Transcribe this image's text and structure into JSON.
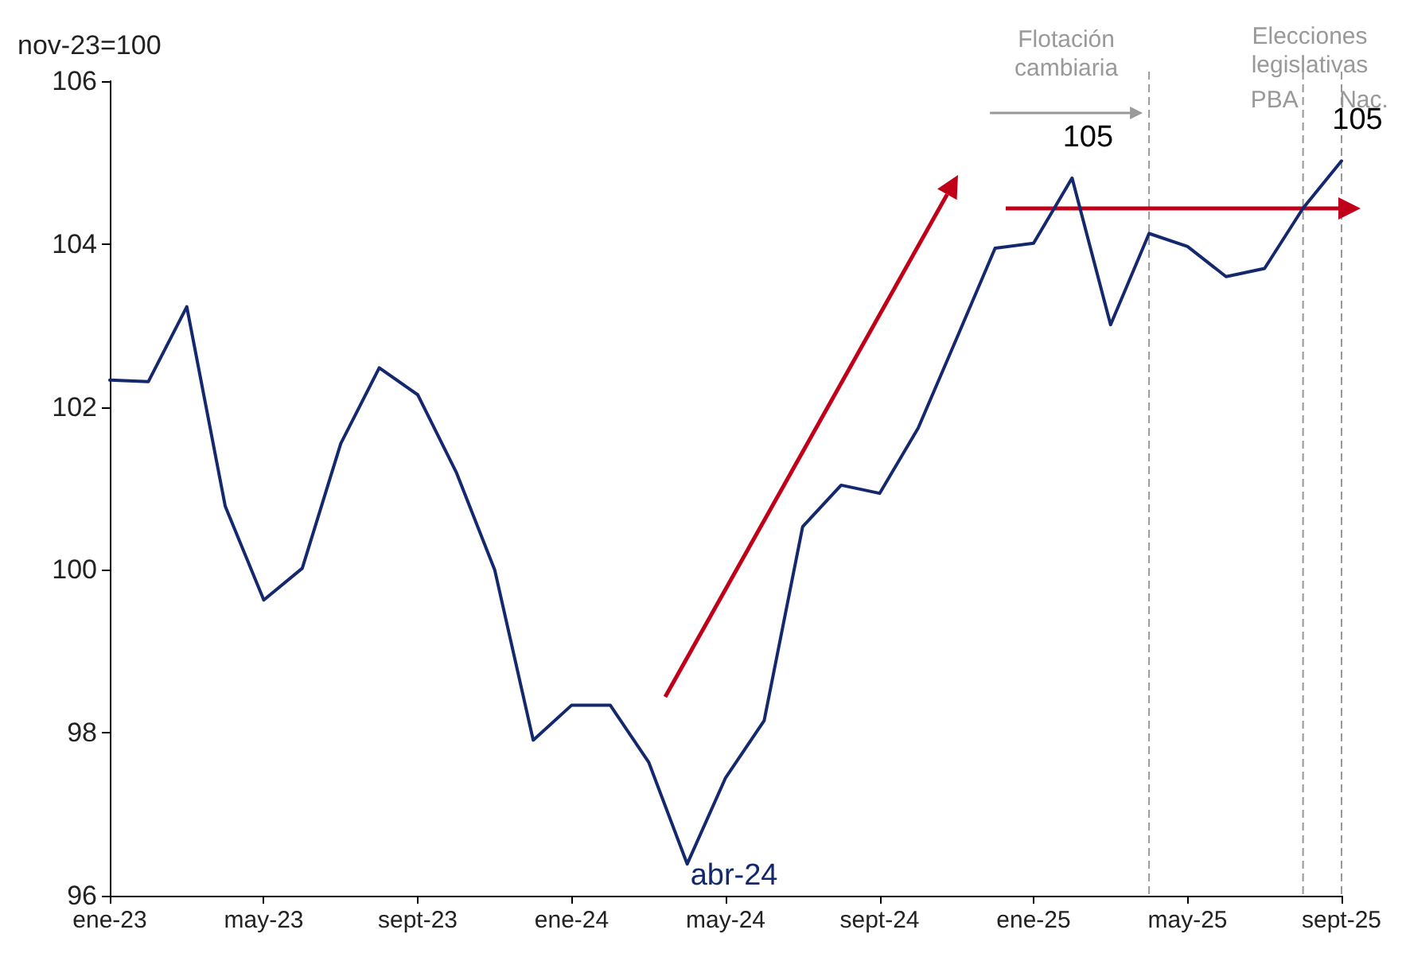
{
  "chart_data": {
    "type": "line",
    "ylabel": "nov-23=100",
    "x": [
      "2023-01",
      "2023-02",
      "2023-03",
      "2023-04",
      "2023-05",
      "2023-06",
      "2023-07",
      "2023-08",
      "2023-09",
      "2023-10",
      "2023-11",
      "2023-12",
      "2024-01",
      "2024-02",
      "2024-03",
      "2024-04",
      "2024-05",
      "2024-06",
      "2024-07",
      "2024-08",
      "2024-09",
      "2024-10",
      "2024-11",
      "2024-12",
      "2025-01",
      "2025-02",
      "2025-03",
      "2025-04",
      "2025-05",
      "2025-06",
      "2025-07",
      "2025-08",
      "2025-09"
    ],
    "series": [
      {
        "color": "#14286e",
        "values": [
          102.33,
          102.31,
          103.23,
          100.78,
          99.63,
          100.02,
          101.55,
          102.48,
          102.15,
          101.2,
          100,
          97.91,
          98.34,
          98.34,
          97.64,
          96.39,
          97.45,
          98.15,
          100.53,
          101.04,
          100.94,
          101.74,
          102.84,
          103.95,
          104.01,
          104.81,
          103.01,
          104.13,
          103.97,
          103.6,
          103.7,
          104.44,
          105.02
        ]
      }
    ],
    "xlim": [
      "2023-01",
      "2025-09"
    ],
    "xticks": [
      {
        "value": "2023-01",
        "label": "ene-23"
      },
      {
        "value": "2023-05",
        "label": "may-23"
      },
      {
        "value": "2023-09",
        "label": "sept-23"
      },
      {
        "value": "2024-01",
        "label": "ene-24"
      },
      {
        "value": "2024-05",
        "label": "may-24"
      },
      {
        "value": "2024-09",
        "label": "sept-24"
      },
      {
        "value": "2025-01",
        "label": "ene-25"
      },
      {
        "value": "2025-05",
        "label": "may-25"
      },
      {
        "value": "2025-09",
        "label": "sept-25"
      }
    ],
    "ylim": [
      96,
      106
    ],
    "yticks": [
      96,
      98,
      100,
      102,
      104,
      106
    ],
    "grid": false,
    "marker": "none",
    "line_style": "solid",
    "ref_lines": [
      {
        "axis": "x",
        "value": "2025-04",
        "label": "Flotación cambiaria",
        "color": "#999999",
        "line_style": "dashed"
      },
      {
        "axis": "x",
        "value": "2025-08",
        "label": "PBA",
        "color": "#999999",
        "line_style": "dashed"
      },
      {
        "axis": "x",
        "value": "2025-09",
        "label": "Nac.",
        "color": "#999999",
        "line_style": "dashed"
      }
    ],
    "annotations": [
      {
        "text": "105",
        "x": "2025-02",
        "y": 104.81
      },
      {
        "text": "105",
        "x": "2025-09",
        "y": 105.02
      },
      {
        "text": "abr-24",
        "x": "2024-04",
        "y": 96.39
      },
      "Elecciones legislativas"
    ]
  }
}
